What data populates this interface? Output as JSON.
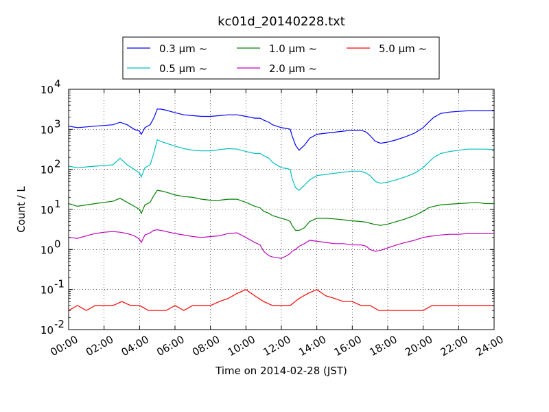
{
  "chart_data": {
    "type": "line",
    "title": "kc01d_20140228.txt",
    "xlabel": "Time on 2014-02-28 (JST)",
    "ylabel": "Count / L",
    "x_unit": "hours",
    "xlim": [
      0,
      24
    ],
    "ylim": [
      0.01,
      10000
    ],
    "yscale": "log",
    "grid": true,
    "legend_position": "top-center-outside",
    "x_ticks": [
      0,
      2,
      4,
      6,
      8,
      10,
      12,
      14,
      16,
      18,
      20,
      22,
      24
    ],
    "x_tick_labels": [
      "00:00",
      "02:00",
      "04:00",
      "06:00",
      "08:00",
      "10:00",
      "12:00",
      "14:00",
      "16:00",
      "18:00",
      "20:00",
      "22:00",
      "24:00"
    ],
    "y_ticks": [
      0.01,
      0.1,
      1,
      10,
      100,
      1000,
      10000
    ],
    "y_tick_labels": [
      {
        "base": "10",
        "exp": "-2"
      },
      {
        "base": "10",
        "exp": "-1"
      },
      {
        "base": "10",
        "exp": "0"
      },
      {
        "base": "10",
        "exp": "1"
      },
      {
        "base": "10",
        "exp": "2"
      },
      {
        "base": "10",
        "exp": "3"
      },
      {
        "base": "10",
        "exp": "4"
      }
    ],
    "series": [
      {
        "name": "0.3 μm ~",
        "color": "#0000ff",
        "x": [
          0,
          0.5,
          1,
          1.5,
          2,
          2.5,
          2.9,
          3.3,
          3.7,
          4,
          4.1,
          4.3,
          4.6,
          4.8,
          5,
          5.2,
          5.5,
          6,
          6.5,
          7,
          7.5,
          8,
          8.5,
          9,
          9.5,
          10,
          10.5,
          10.8,
          11,
          11.3,
          11.5,
          12,
          12.3,
          12.5,
          12.6,
          12.8,
          13,
          13.3,
          13.6,
          14,
          14.5,
          15,
          15.5,
          16,
          16.5,
          16.8,
          17,
          17.3,
          17.6,
          18,
          18.5,
          19,
          19.5,
          20,
          20.3,
          20.6,
          21,
          21.5,
          22,
          22.5,
          23,
          23.5,
          24
        ],
        "y": [
          1200,
          1100,
          1150,
          1200,
          1250,
          1300,
          1500,
          1300,
          1000,
          900,
          750,
          1100,
          1300,
          1900,
          3200,
          3200,
          3000,
          2600,
          2300,
          2200,
          2100,
          2100,
          2200,
          2300,
          2300,
          2100,
          1900,
          1900,
          1700,
          1500,
          1300,
          1100,
          1050,
          1000,
          700,
          400,
          300,
          400,
          600,
          750,
          800,
          850,
          900,
          950,
          950,
          850,
          700,
          500,
          450,
          480,
          550,
          650,
          800,
          1100,
          1500,
          2000,
          2500,
          2700,
          2800,
          2900,
          2900,
          2900,
          2900
        ]
      },
      {
        "name": "0.5 μm ~",
        "color": "#00bfbf",
        "x": [
          0,
          0.5,
          1,
          1.5,
          2,
          2.5,
          2.9,
          3.3,
          3.7,
          4,
          4.1,
          4.3,
          4.6,
          4.8,
          5,
          5.2,
          5.5,
          6,
          6.5,
          7,
          7.5,
          8,
          8.5,
          9,
          9.5,
          10,
          10.5,
          10.8,
          11,
          11.3,
          11.5,
          12,
          12.3,
          12.5,
          12.6,
          12.8,
          13,
          13.3,
          13.6,
          14,
          14.5,
          15,
          15.5,
          16,
          16.5,
          16.8,
          17,
          17.3,
          17.6,
          18,
          18.5,
          19,
          19.5,
          20,
          20.3,
          20.6,
          21,
          21.5,
          22,
          22.5,
          23,
          23.5,
          24
        ],
        "y": [
          120,
          110,
          115,
          120,
          125,
          130,
          190,
          130,
          100,
          80,
          65,
          110,
          130,
          250,
          550,
          500,
          450,
          380,
          330,
          300,
          290,
          290,
          310,
          330,
          320,
          280,
          250,
          250,
          220,
          190,
          150,
          110,
          105,
          100,
          60,
          35,
          30,
          40,
          55,
          70,
          75,
          80,
          85,
          90,
          90,
          80,
          70,
          50,
          45,
          48,
          55,
          65,
          80,
          110,
          150,
          200,
          250,
          280,
          300,
          320,
          320,
          320,
          310
        ]
      },
      {
        "name": "1.0 μm ~",
        "color": "#008000",
        "x": [
          0,
          0.5,
          1,
          1.5,
          2,
          2.5,
          2.9,
          3.3,
          3.7,
          4,
          4.1,
          4.3,
          4.6,
          4.8,
          5,
          5.2,
          5.5,
          6,
          6.5,
          7,
          7.5,
          8,
          8.5,
          9,
          9.5,
          10,
          10.5,
          10.8,
          11,
          11.3,
          11.5,
          12,
          12.3,
          12.5,
          12.6,
          12.8,
          13,
          13.3,
          13.6,
          14,
          14.5,
          15,
          15.5,
          16,
          16.5,
          16.8,
          17,
          17.3,
          17.6,
          18,
          18.5,
          19,
          19.5,
          20,
          20.3,
          20.6,
          21,
          21.5,
          22,
          22.5,
          23,
          23.5,
          24
        ],
        "y": [
          14,
          12,
          13,
          14,
          15,
          16,
          19,
          15,
          12,
          10,
          8,
          13,
          15,
          22,
          30,
          29,
          27,
          23,
          21,
          20,
          18,
          17,
          17,
          18,
          18,
          15,
          12,
          11,
          9,
          8,
          7,
          6,
          5.5,
          5,
          4,
          3,
          3,
          3.5,
          5,
          6,
          6,
          5.8,
          5.5,
          5.2,
          5,
          4.8,
          4.5,
          4.2,
          4,
          4.3,
          5,
          5.8,
          7,
          9,
          11,
          12,
          13,
          13.5,
          14,
          14.5,
          15,
          14,
          14
        ]
      },
      {
        "name": "2.0 μm ~",
        "color": "#bf00bf",
        "x": [
          0,
          0.5,
          1,
          1.5,
          2,
          2.5,
          2.9,
          3.3,
          3.7,
          4,
          4.1,
          4.3,
          4.6,
          4.8,
          5,
          5.2,
          5.5,
          6,
          6.5,
          7,
          7.5,
          8,
          8.5,
          9,
          9.5,
          10,
          10.5,
          10.8,
          11,
          11.3,
          11.5,
          12,
          12.3,
          12.5,
          12.6,
          12.8,
          13,
          13.3,
          13.6,
          14,
          14.5,
          15,
          15.5,
          16,
          16.5,
          16.8,
          17,
          17.3,
          17.6,
          18,
          18.5,
          19,
          19.5,
          20,
          20.3,
          20.6,
          21,
          21.5,
          22,
          22.5,
          23,
          23.5,
          24
        ],
        "y": [
          2,
          1.9,
          2.2,
          2.5,
          2.7,
          2.8,
          2.7,
          2.5,
          2.2,
          1.8,
          1.5,
          2.3,
          2.6,
          3,
          3.1,
          3.0,
          2.8,
          2.5,
          2.3,
          2.1,
          2.0,
          2.1,
          2.2,
          2.5,
          2.6,
          2.0,
          1.5,
          1.3,
          0.9,
          0.7,
          0.65,
          0.6,
          0.7,
          0.8,
          0.9,
          1.0,
          1.2,
          1.4,
          1.7,
          1.6,
          1.5,
          1.4,
          1.4,
          1.3,
          1.3,
          1.2,
          1.0,
          0.9,
          0.95,
          1.1,
          1.3,
          1.5,
          1.7,
          2.0,
          2.1,
          2.2,
          2.3,
          2.4,
          2.4,
          2.5,
          2.5,
          2.5,
          2.5
        ]
      },
      {
        "name": "5.0 μm ~",
        "color": "#ff0000",
        "x": [
          0,
          0.5,
          1,
          1.5,
          2,
          2.5,
          3,
          3.5,
          4,
          4.5,
          5,
          5.5,
          6,
          6.5,
          7,
          7.5,
          8,
          8.5,
          9,
          9.5,
          10,
          10.5,
          11,
          11.5,
          12,
          12.5,
          13,
          13.5,
          14,
          14.5,
          15,
          15.5,
          16,
          16.5,
          17,
          17.5,
          18,
          18.5,
          19,
          19.5,
          20,
          20.5,
          21,
          21.5,
          22,
          22.5,
          23,
          23.5,
          24
        ],
        "y": [
          0.03,
          0.04,
          0.03,
          0.04,
          0.04,
          0.04,
          0.05,
          0.04,
          0.04,
          0.03,
          0.03,
          0.03,
          0.04,
          0.03,
          0.04,
          0.04,
          0.04,
          0.05,
          0.06,
          0.08,
          0.1,
          0.07,
          0.05,
          0.04,
          0.04,
          0.04,
          0.06,
          0.08,
          0.1,
          0.07,
          0.06,
          0.05,
          0.05,
          0.04,
          0.04,
          0.03,
          0.03,
          0.03,
          0.03,
          0.03,
          0.03,
          0.04,
          0.04,
          0.04,
          0.04,
          0.04,
          0.04,
          0.04,
          0.04
        ]
      }
    ]
  }
}
